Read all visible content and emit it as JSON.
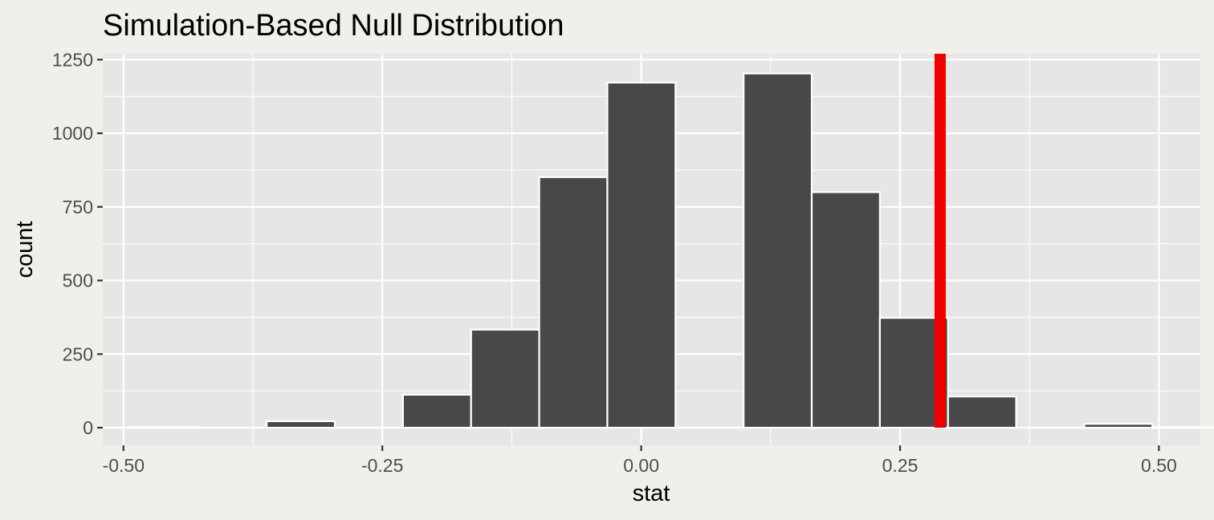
{
  "chart_data": {
    "type": "bar",
    "title": "Simulation-Based Null Distribution",
    "xlabel": "stat",
    "ylabel": "count",
    "xlim": [
      -0.52,
      0.54
    ],
    "ylim": [
      -60,
      1270
    ],
    "x_ticks": [
      -0.5,
      -0.25,
      0.0,
      0.25,
      0.5
    ],
    "x_tick_labels": [
      "-0.50",
      "-0.25",
      "0.00",
      "0.25",
      "0.50"
    ],
    "y_ticks": [
      0,
      250,
      500,
      750,
      1000,
      1250
    ],
    "y_tick_labels": [
      "0",
      "250",
      "500",
      "750",
      "1000",
      "1250"
    ],
    "grid": true,
    "bin_width": 0.0658,
    "bins": [
      {
        "x_start": -0.4933,
        "x_end": -0.4275,
        "count": 2
      },
      {
        "x_start": -0.4275,
        "x_end": -0.3617,
        "count": 0
      },
      {
        "x_start": -0.3617,
        "x_end": -0.2959,
        "count": 22
      },
      {
        "x_start": -0.2959,
        "x_end": -0.2301,
        "count": 0
      },
      {
        "x_start": -0.2301,
        "x_end": -0.1643,
        "count": 112
      },
      {
        "x_start": -0.1643,
        "x_end": -0.0985,
        "count": 333
      },
      {
        "x_start": -0.0985,
        "x_end": -0.0327,
        "count": 851
      },
      {
        "x_start": -0.0327,
        "x_end": 0.0331,
        "count": 1172
      },
      {
        "x_start": 0.0331,
        "x_end": 0.0989,
        "count": 0
      },
      {
        "x_start": 0.0989,
        "x_end": 0.1647,
        "count": 1203
      },
      {
        "x_start": 0.1647,
        "x_end": 0.2305,
        "count": 800
      },
      {
        "x_start": 0.2305,
        "x_end": 0.2963,
        "count": 373
      },
      {
        "x_start": 0.2963,
        "x_end": 0.3621,
        "count": 106
      },
      {
        "x_start": 0.3621,
        "x_end": 0.4279,
        "count": 0
      },
      {
        "x_start": 0.4279,
        "x_end": 0.4937,
        "count": 13
      },
      {
        "x_start": 0.4937,
        "x_end": 0.5595,
        "count": 2
      }
    ],
    "observed_stat": 0.2887,
    "colors": {
      "bar_fill": "#484848",
      "bar_stroke": "#ffffff",
      "observed_line": "#ee0000",
      "panel_background": "#e6e6e6",
      "grid": "#ffffff",
      "page_background": "#f0f0eb"
    }
  }
}
